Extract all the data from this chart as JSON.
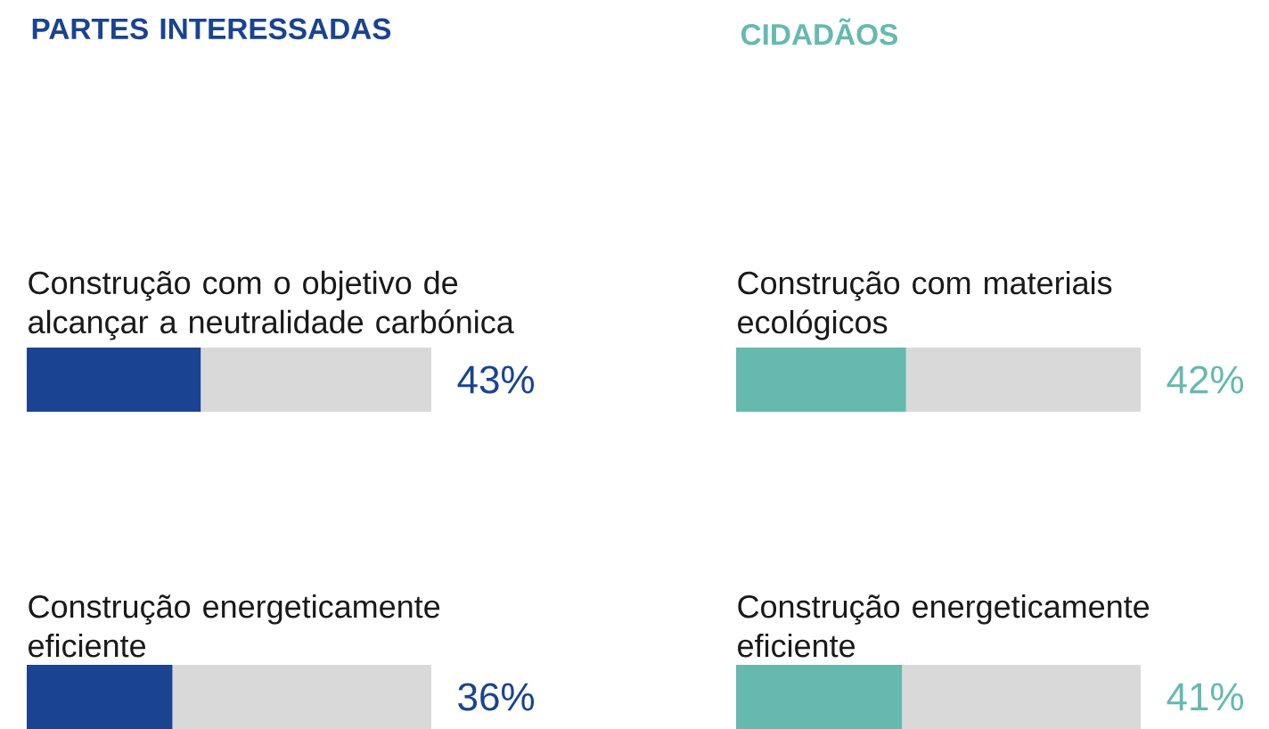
{
  "chart_data": [
    {
      "type": "bar",
      "orientation": "horizontal",
      "stacked": true,
      "title": "PARTES INTERESSADAS",
      "categories": [
        "Construção com o objetivo de alcançar a neutralidade carbónica",
        "Construção energeticamente eficiente"
      ],
      "xlim": [
        0,
        100
      ],
      "tick_labels": false,
      "series": [
        {
          "color": "#1a4391",
          "values": [
            43,
            36
          ],
          "value_labels": [
            "43%",
            "36%"
          ]
        },
        {
          "color": "#d9d9d9",
          "values": [
            57,
            64
          ]
        }
      ]
    },
    {
      "type": "bar",
      "orientation": "horizontal",
      "stacked": true,
      "title": "CIDADÃOS",
      "categories": [
        "Construção com materiais ecológicos",
        "Construção energeticamente eficiente"
      ],
      "xlim": [
        0,
        100
      ],
      "tick_labels": false,
      "series": [
        {
          "color": "#66b9ae",
          "values": [
            42,
            41
          ],
          "value_labels": [
            "42%",
            "41%"
          ]
        },
        {
          "color": "#d9d9d9",
          "values": [
            58,
            59
          ]
        }
      ]
    }
  ]
}
